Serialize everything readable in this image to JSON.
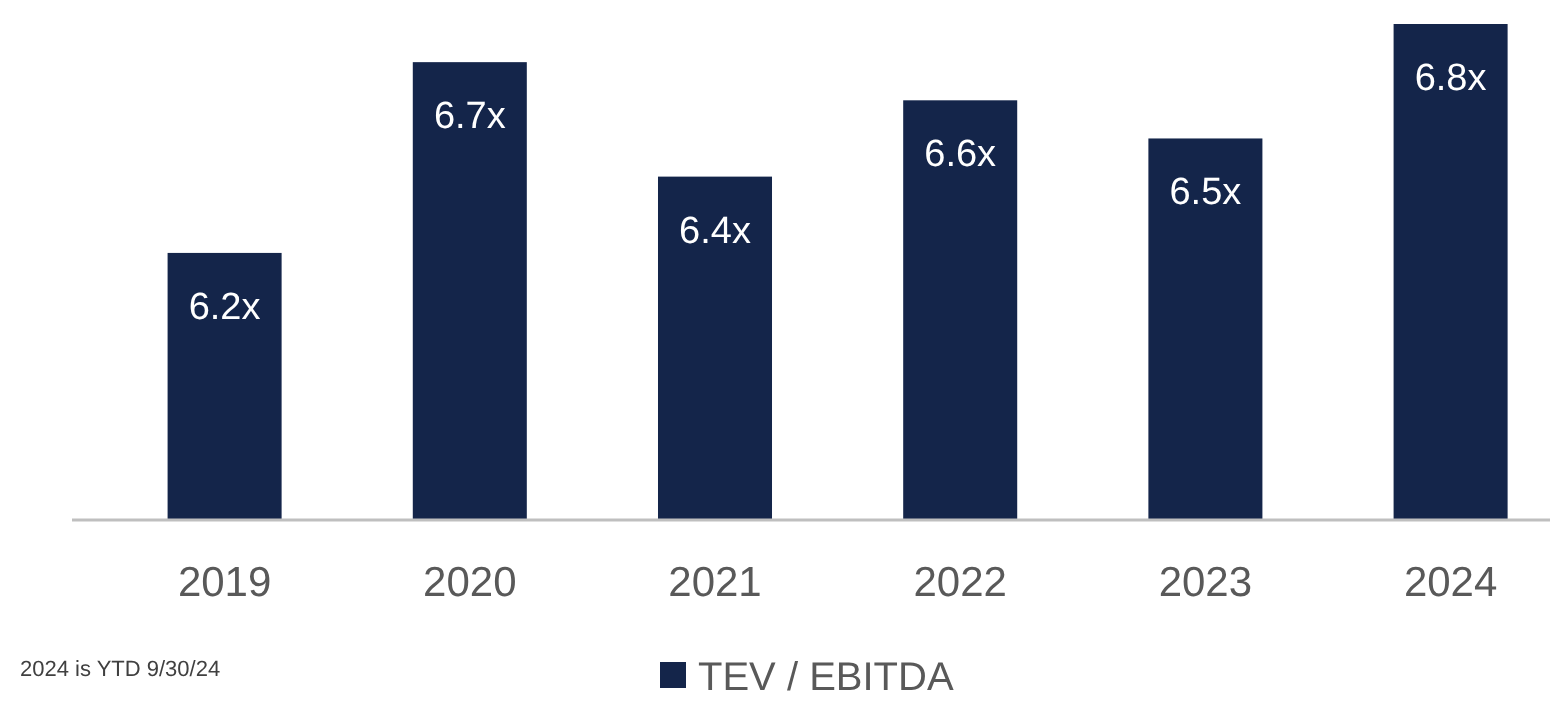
{
  "chart_data": {
    "type": "bar",
    "categories": [
      "2019",
      "2020",
      "2021",
      "2022",
      "2023",
      "2024"
    ],
    "series": [
      {
        "name": "TEV / EBITDA",
        "color": "#14254a",
        "values": [
          6.2,
          6.7,
          6.4,
          6.6,
          6.5,
          6.8
        ],
        "value_labels": [
          "6.2x",
          "6.7x",
          "6.4x",
          "6.6x",
          "6.5x",
          "6.8x"
        ]
      }
    ],
    "ylim": [
      5.5,
      6.8
    ],
    "legend": "bottom",
    "annotations": [
      "2024 is YTD 9/30/24"
    ]
  }
}
